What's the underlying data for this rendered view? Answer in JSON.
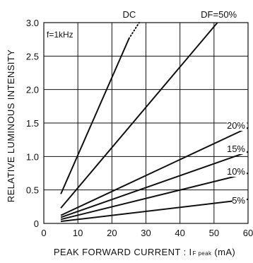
{
  "chart_data": {
    "type": "line",
    "xlabel": "PEAK FORWARD CURRENT : I",
    "xlabel_sub": "F peak",
    "xlabel_unit": " (mA)",
    "ylabel": "RELATIVE LUMINOUS INTENSITY",
    "annotation": "f=1kHz",
    "xlim": [
      0,
      60
    ],
    "ylim": [
      0,
      3.0
    ],
    "xticks": [
      "0",
      "10",
      "20",
      "30",
      "40",
      "50",
      "60"
    ],
    "yticks": [
      "0",
      "0.5",
      "1.0",
      "1.5",
      "2.0",
      "2.5",
      "3.0"
    ],
    "grid": true,
    "series": [
      {
        "name": "DC",
        "x": [
          5,
          25
        ],
        "y": [
          0.44,
          2.76
        ],
        "dotted_to": [
          28,
          3.0
        ]
      },
      {
        "name": "DF=50%",
        "x": [
          5,
          51
        ],
        "y": [
          0.23,
          3.0
        ]
      },
      {
        "name": "20%",
        "x": [
          5,
          60
        ],
        "y": [
          0.12,
          1.43
        ]
      },
      {
        "name": "15%",
        "x": [
          5,
          60
        ],
        "y": [
          0.09,
          1.07
        ]
      },
      {
        "name": "10%",
        "x": [
          5,
          60
        ],
        "y": [
          0.06,
          0.75
        ]
      },
      {
        "name": "5%",
        "x": [
          5,
          60
        ],
        "y": [
          0.03,
          0.36
        ]
      }
    ]
  }
}
